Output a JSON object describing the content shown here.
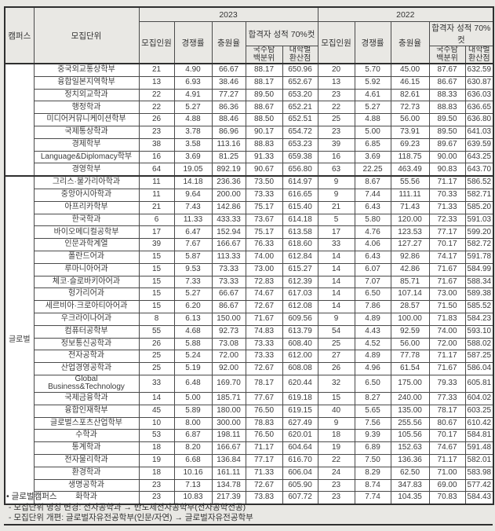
{
  "table": {
    "header": {
      "campus": "캠퍼스",
      "unit": "모집단위",
      "year_left": "2023",
      "year_right": "2022",
      "cut_label": "합격자 성적 70%컷",
      "col_enroll": "모집인원",
      "col_ratio": "경쟁률",
      "col_fill": "충원율",
      "col_percentile": "국수탐\n백분위",
      "col_converted": "대학별\n환산점"
    },
    "groups": [
      {
        "campus": "",
        "rows": [
          {
            "unit": "중국외교통상학부",
            "y2023": [
              "21",
              "4.90",
              "66.67",
              "88.17",
              "650.96"
            ],
            "y2022": [
              "20",
              "5.70",
              "45.00",
              "87.67",
              "632.59"
            ]
          },
          {
            "unit": "융합일본지역학부",
            "y2023": [
              "13",
              "6.93",
              "38.46",
              "88.17",
              "652.67"
            ],
            "y2022": [
              "13",
              "5.92",
              "46.15",
              "86.67",
              "630.87"
            ]
          },
          {
            "unit": "정치외교학과",
            "y2023": [
              "22",
              "4.91",
              "77.27",
              "89.50",
              "653.20"
            ],
            "y2022": [
              "23",
              "4.61",
              "82.61",
              "88.33",
              "636.03"
            ]
          },
          {
            "unit": "행정학과",
            "y2023": [
              "22",
              "5.27",
              "86.36",
              "88.67",
              "652.21"
            ],
            "y2022": [
              "22",
              "5.27",
              "72.73",
              "88.83",
              "636.65"
            ]
          },
          {
            "unit": "미디어커뮤니케이션학부",
            "y2023": [
              "26",
              "4.88",
              "88.46",
              "88.50",
              "652.51"
            ],
            "y2022": [
              "25",
              "4.88",
              "56.00",
              "89.50",
              "636.80"
            ]
          },
          {
            "unit": "국제통상학과",
            "y2023": [
              "23",
              "3.78",
              "86.96",
              "90.17",
              "654.72"
            ],
            "y2022": [
              "23",
              "5.00",
              "73.91",
              "89.50",
              "641.03"
            ]
          },
          {
            "unit": "경제학부",
            "y2023": [
              "38",
              "3.58",
              "113.16",
              "88.83",
              "653.23"
            ],
            "y2022": [
              "39",
              "6.85",
              "69.23",
              "89.67",
              "639.59"
            ]
          },
          {
            "unit": "Language&Diplomacy학부",
            "y2023": [
              "16",
              "3.69",
              "81.25",
              "91.33",
              "659.38"
            ],
            "y2022": [
              "16",
              "3.69",
              "118.75",
              "90.00",
              "643.25"
            ]
          },
          {
            "unit": "경영학부",
            "y2023": [
              "64",
              "19.05",
              "892.19",
              "90.67",
              "656.80"
            ],
            "y2022": [
              "63",
              "22.25",
              "463.49",
              "90.83",
              "643.70"
            ]
          }
        ]
      },
      {
        "campus": "글로벌",
        "rows": [
          {
            "unit": "그리스·불가리아학과",
            "y2023": [
              "11",
              "14.18",
              "236.36",
              "73.50",
              "614.97"
            ],
            "y2022": [
              "9",
              "8.67",
              "55.56",
              "71.17",
              "586.52"
            ]
          },
          {
            "unit": "중앙아시아학과",
            "y2023": [
              "11",
              "9.64",
              "200.00",
              "73.33",
              "616.65"
            ],
            "y2022": [
              "9",
              "7.44",
              "111.11",
              "70.33",
              "582.71"
            ]
          },
          {
            "unit": "아프리카학부",
            "y2023": [
              "21",
              "7.43",
              "142.86",
              "75.17",
              "615.40"
            ],
            "y2022": [
              "21",
              "6.43",
              "71.43",
              "71.33",
              "585.20"
            ]
          },
          {
            "unit": "한국학과",
            "y2023": [
              "6",
              "11.33",
              "433.33",
              "73.67",
              "614.18"
            ],
            "y2022": [
              "5",
              "5.80",
              "120.00",
              "72.33",
              "591.03"
            ]
          },
          {
            "unit": "바이오메디컬공학부",
            "y2023": [
              "17",
              "6.47",
              "152.94",
              "75.17",
              "613.58"
            ],
            "y2022": [
              "17",
              "4.76",
              "123.53",
              "77.17",
              "599.20"
            ]
          },
          {
            "unit": "인문과학계열",
            "y2023": [
              "39",
              "7.67",
              "166.67",
              "76.33",
              "618.60"
            ],
            "y2022": [
              "33",
              "4.06",
              "127.27",
              "70.17",
              "582.72"
            ]
          },
          {
            "unit": "폴란드어과",
            "y2023": [
              "15",
              "5.87",
              "113.33",
              "74.00",
              "612.84"
            ],
            "y2022": [
              "14",
              "6.43",
              "92.86",
              "74.17",
              "591.78"
            ]
          },
          {
            "unit": "루마니아어과",
            "y2023": [
              "15",
              "9.53",
              "73.33",
              "73.00",
              "615.27"
            ],
            "y2022": [
              "14",
              "6.07",
              "42.86",
              "71.67",
              "584.99"
            ]
          },
          {
            "unit": "체코·슬로바키아어과",
            "y2023": [
              "15",
              "7.33",
              "73.33",
              "72.83",
              "612.39"
            ],
            "y2022": [
              "14",
              "7.07",
              "85.71",
              "71.67",
              "588.34"
            ]
          },
          {
            "unit": "헝가리어과",
            "y2023": [
              "15",
              "5.27",
              "66.67",
              "74.67",
              "617.03"
            ],
            "y2022": [
              "14",
              "6.50",
              "107.14",
              "73.00",
              "589.38"
            ]
          },
          {
            "unit": "세르비아·크로아티아어과",
            "y2023": [
              "15",
              "6.20",
              "86.67",
              "72.67",
              "612.08"
            ],
            "y2022": [
              "14",
              "7.86",
              "28.57",
              "71.50",
              "585.52"
            ]
          },
          {
            "unit": "우크라이나어과",
            "y2023": [
              "8",
              "6.13",
              "150.00",
              "71.67",
              "609.56"
            ],
            "y2022": [
              "9",
              "4.89",
              "100.00",
              "71.83",
              "584.23"
            ]
          },
          {
            "unit": "컴퓨터공학부",
            "y2023": [
              "55",
              "4.68",
              "92.73",
              "74.83",
              "613.79"
            ],
            "y2022": [
              "54",
              "4.43",
              "92.59",
              "74.00",
              "593.10"
            ]
          },
          {
            "unit": "정보통신공학과",
            "y2023": [
              "26",
              "5.88",
              "73.08",
              "73.33",
              "608.40"
            ],
            "y2022": [
              "25",
              "4.52",
              "56.00",
              "72.00",
              "588.02"
            ]
          },
          {
            "unit": "전자공학과",
            "y2023": [
              "25",
              "5.24",
              "72.00",
              "73.33",
              "612.00"
            ],
            "y2022": [
              "27",
              "4.89",
              "77.78",
              "71.17",
              "587.25"
            ]
          },
          {
            "unit": "산업경영공학과",
            "y2023": [
              "25",
              "5.19",
              "92.00",
              "72.67",
              "608.08"
            ],
            "y2022": [
              "26",
              "4.96",
              "61.54",
              "71.67",
              "586.04"
            ]
          },
          {
            "unit": "Global\nBusiness&Technology",
            "y2023": [
              "33",
              "6.48",
              "169.70",
              "78.17",
              "620.44"
            ],
            "y2022": [
              "32",
              "6.50",
              "175.00",
              "79.33",
              "605.81"
            ]
          },
          {
            "unit": "국제금융학과",
            "y2023": [
              "14",
              "5.00",
              "185.71",
              "77.67",
              "619.18"
            ],
            "y2022": [
              "15",
              "8.27",
              "240.00",
              "77.33",
              "604.02"
            ]
          },
          {
            "unit": "융합인재학부",
            "y2023": [
              "45",
              "5.89",
              "180.00",
              "76.50",
              "619.15"
            ],
            "y2022": [
              "40",
              "5.65",
              "135.00",
              "78.17",
              "603.25"
            ]
          },
          {
            "unit": "글로벌스포츠산업학부",
            "y2023": [
              "10",
              "8.00",
              "300.00",
              "78.83",
              "627.49"
            ],
            "y2022": [
              "9",
              "7.56",
              "255.56",
              "80.67",
              "610.42"
            ]
          },
          {
            "unit": "수학과",
            "y2023": [
              "53",
              "6.87",
              "198.11",
              "76.50",
              "620.01"
            ],
            "y2022": [
              "18",
              "9.39",
              "105.56",
              "70.17",
              "584.81"
            ]
          },
          {
            "unit": "통계학과",
            "y2023": [
              "18",
              "8.20",
              "166.67",
              "71.17",
              "604.64"
            ],
            "y2022": [
              "19",
              "6.89",
              "152.63",
              "74.67",
              "591.48"
            ]
          },
          {
            "unit": "전자물리학과",
            "y2023": [
              "19",
              "6.68",
              "136.84",
              "77.17",
              "616.70"
            ],
            "y2022": [
              "22",
              "7.50",
              "136.36",
              "71.17",
              "582.01"
            ]
          },
          {
            "unit": "환경학과",
            "y2023": [
              "18",
              "10.16",
              "161.11",
              "71.33",
              "606.04"
            ],
            "y2022": [
              "24",
              "8.29",
              "62.50",
              "71.00",
              "583.98"
            ]
          },
          {
            "unit": "생명공학과",
            "y2023": [
              "23",
              "7.13",
              "134.78",
              "72.67",
              "605.90"
            ],
            "y2022": [
              "23",
              "8.74",
              "347.83",
              "69.00",
              "577.42"
            ]
          },
          {
            "unit": "화학과",
            "y2023": [
              "23",
              "10.83",
              "217.39",
              "73.83",
              "607.72"
            ],
            "y2022": [
              "23",
              "7.74",
              "104.35",
              "70.83",
              "584.43"
            ]
          }
        ]
      }
    ]
  },
  "footnotes": {
    "line1": "• 글로벌캠퍼스",
    "line2": " - 모집단위 명칭 변경: 전자공학과 → 반도체전자공학부(전자공학전공)",
    "line3": " - 모집단위 개편: 글로벌자유전공학부(인문/자연) → 글로벌자유전공학부"
  },
  "colors": {
    "page_background": "#e9e8e4",
    "header_background": "#e9e8e4",
    "cell_background": "#ffffff",
    "border": "#4a4a4a",
    "text": "#3a3a3a"
  }
}
